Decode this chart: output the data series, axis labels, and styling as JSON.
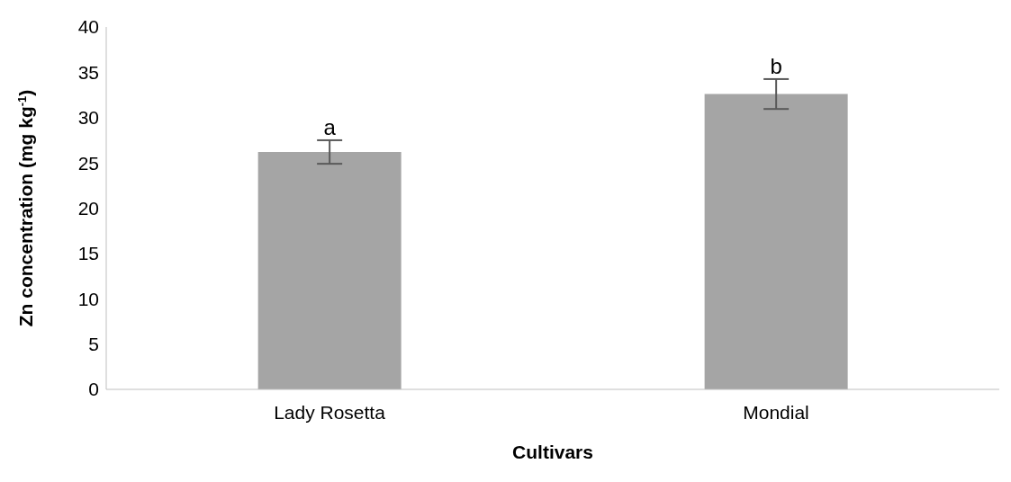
{
  "chart_data": {
    "type": "bar",
    "xlabel": "Cultivars",
    "ylabel": "Zn concentration (mg kg$^{-1}$)",
    "categories": [
      "Lady Rosetta",
      "Mondial"
    ],
    "values": [
      26.2,
      32.6
    ],
    "errors": [
      1.3,
      1.65
    ],
    "color": "#a5a5a5",
    "ylim": [
      0,
      40
    ],
    "yticks": [
      0,
      5,
      10,
      15,
      20,
      25,
      30,
      35,
      40
    ],
    "grid": false,
    "legend": false,
    "annotations": [
      "a",
      "b"
    ]
  }
}
